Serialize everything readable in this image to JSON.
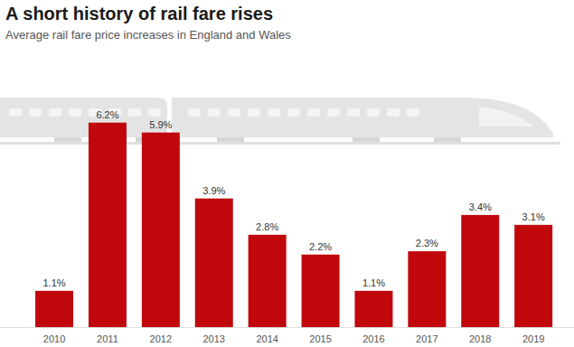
{
  "chart_data": {
    "type": "bar",
    "title": "A short history of rail fare rises",
    "subtitle": "Average rail fare price increases in England and Wales",
    "categories": [
      "2010",
      "2011",
      "2012",
      "2013",
      "2014",
      "2015",
      "2016",
      "2017",
      "2018",
      "2019"
    ],
    "values": [
      1.1,
      6.2,
      5.9,
      3.9,
      2.8,
      2.2,
      1.1,
      2.3,
      3.4,
      3.1
    ],
    "value_labels": [
      "1.1%",
      "6.2%",
      "5.9%",
      "3.9%",
      "2.8%",
      "2.2%",
      "1.1%",
      "2.3%",
      "3.4%",
      "3.1%"
    ],
    "color": "#c0070c",
    "ylim": [
      0,
      7
    ],
    "data_labels": true,
    "tick_labels": "x",
    "grid": false
  }
}
